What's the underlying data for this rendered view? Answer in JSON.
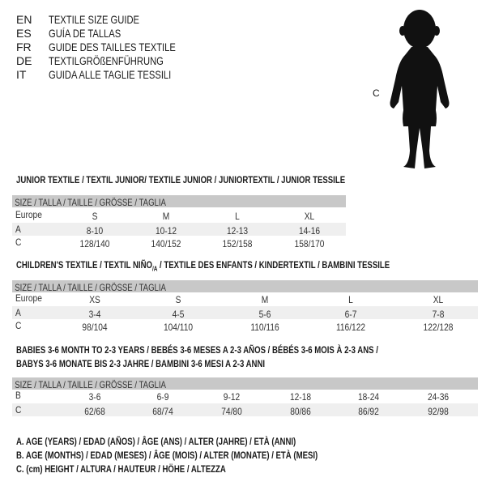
{
  "languages": [
    {
      "code": "EN",
      "text": "TEXTILE SIZE GUIDE"
    },
    {
      "code": "ES",
      "text": "GUÍA DE TALLAS"
    },
    {
      "code": "FR",
      "text": "GUIDE DES TAILLES TEXTILE"
    },
    {
      "code": "DE",
      "text": "TEXTILGRÖßENFÜHRUNG"
    },
    {
      "code": "IT",
      "text": "GUIDA ALLE TAGLIE TESSILI"
    }
  ],
  "figure": {
    "label": "C",
    "icon": "baby-silhouette"
  },
  "header_label": "SIZE / TALLA / TAILLE / GRÖSSE / TAGLIA",
  "junior": {
    "title": "JUNIOR TEXTILE / TEXTIL JUNIOR/ TEXTILE JUNIOR / JUNIORTEXTIL / JUNIOR TESSILE",
    "rows": [
      {
        "label": "Europe",
        "values": [
          "S",
          "M",
          "L",
          "XL"
        ]
      },
      {
        "label": "A",
        "values": [
          "8-10",
          "10-12",
          "12-13",
          "14-16"
        ]
      },
      {
        "label": "C",
        "values": [
          "128/140",
          "140/152",
          "152/158",
          "158/170"
        ]
      }
    ]
  },
  "children": {
    "title_a": "CHILDREN'S TEXTILE / TEXTIL NIÑO",
    "title_sub": "/A",
    "title_b": " / TEXTILE DES ENFANTS / KINDERTEXTIL / BAMBINI TESSILE",
    "rows": [
      {
        "label": "Europe",
        "values": [
          "XS",
          "S",
          "M",
          "L",
          "XL"
        ]
      },
      {
        "label": "A",
        "values": [
          "3-4",
          "4-5",
          "5-6",
          "6-7",
          "7-8"
        ]
      },
      {
        "label": "C",
        "values": [
          "98/104",
          "104/110",
          "110/116",
          "116/122",
          "122/128"
        ]
      }
    ]
  },
  "babies": {
    "title_1": "BABIES 3-6 MONTH TO 2-3 YEARS / BEBÉS 3-6 MESES A 2-3 AÑOS / BÉBÉS 3-6 MOIS À 2-3 ANS /",
    "title_2": "BABYS 3-6 MONATE BIS 2-3 JAHRE / BAMBINI 3-6 MESI A 2-3 ANNI",
    "rows": [
      {
        "label": "B",
        "values": [
          "3-6",
          "6-9",
          "9-12",
          "12-18",
          "18-24",
          "24-36"
        ]
      },
      {
        "label": "C",
        "values": [
          "62/68",
          "68/74",
          "74/80",
          "80/86",
          "86/92",
          "92/98"
        ]
      }
    ]
  },
  "legend": [
    "A. AGE (YEARS) / EDAD (AÑOS) / ÂGE (ANS) / ALTER (JAHRE) / ETÀ (ANNI)",
    "B. AGE (MONTHS) / EDAD (MESES) / ÂGE (MOIS) / ALTER (MONATE) / ETÀ (MESI)",
    "C. (cm) HEIGHT / ALTURA / HAUTEUR / HÖHE / ALTEZZA"
  ]
}
